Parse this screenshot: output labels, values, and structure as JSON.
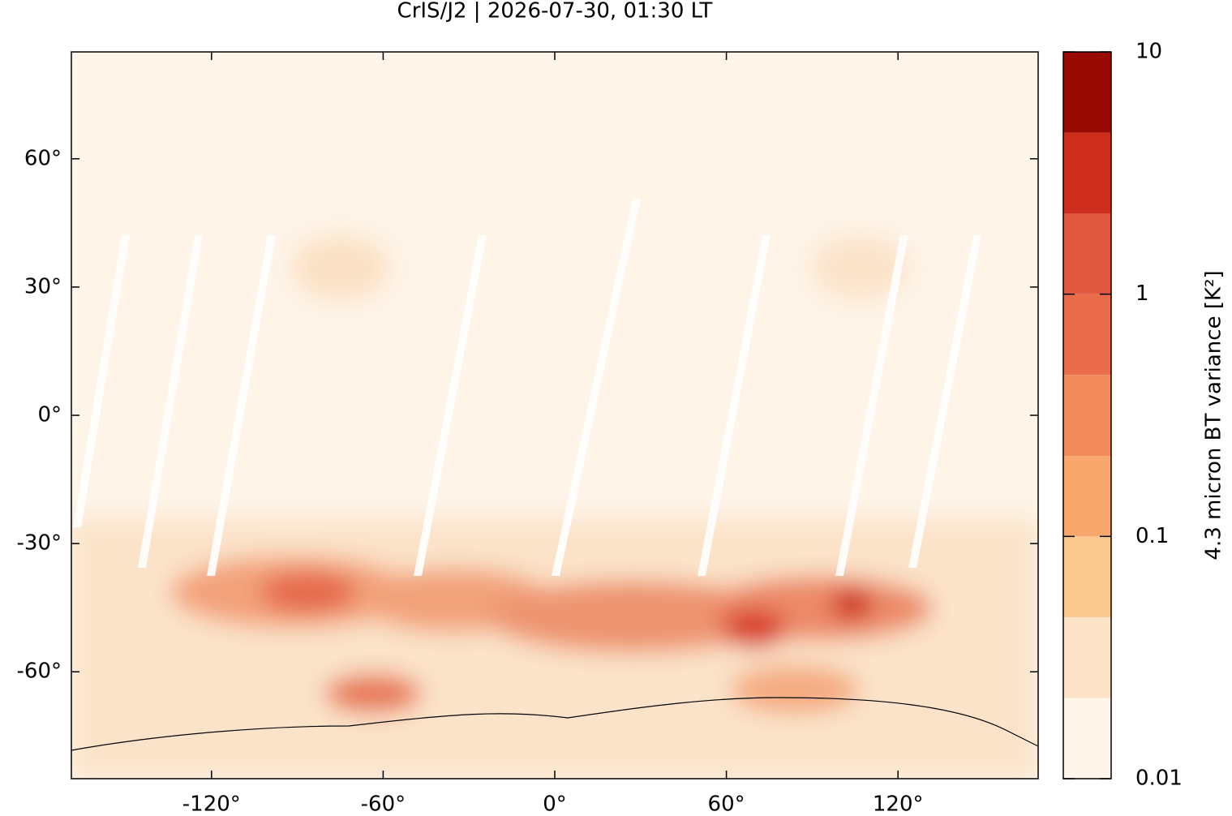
{
  "chart_data": {
    "type": "map",
    "title": "CrIS/J2 | 2026-07-30, 01:30 LT",
    "xlim": [
      -169,
      169
    ],
    "ylim": [
      -85,
      85
    ],
    "xticks": [
      {
        "value": -120,
        "label": "-120°"
      },
      {
        "value": -60,
        "label": "-60°"
      },
      {
        "value": 0,
        "label": "0°"
      },
      {
        "value": 60,
        "label": "60°"
      },
      {
        "value": 120,
        "label": "120°"
      }
    ],
    "yticks": [
      {
        "value": -60,
        "label": "-60°"
      },
      {
        "value": -30,
        "label": "-30°"
      },
      {
        "value": 0,
        "label": "0°"
      },
      {
        "value": 30,
        "label": "30°"
      },
      {
        "value": 60,
        "label": "60°"
      }
    ],
    "colorbar": {
      "label": "4.3 micron BT variance [K²]",
      "log_scale": true,
      "lim": [
        0.01,
        10
      ],
      "ticks": [
        0.01,
        0.1,
        1,
        10
      ],
      "levels": [
        0.01,
        0.0215,
        0.0464,
        0.1,
        0.215,
        0.464,
        1,
        2.15,
        4.64,
        10
      ],
      "colors": [
        "#fff5eb",
        "#fde4c8",
        "#fbc98f",
        "#f8a86c",
        "#f18a5a",
        "#ea6d4b",
        "#e05a40",
        "#cf2e1f",
        "#990a05"
      ]
    }
  }
}
